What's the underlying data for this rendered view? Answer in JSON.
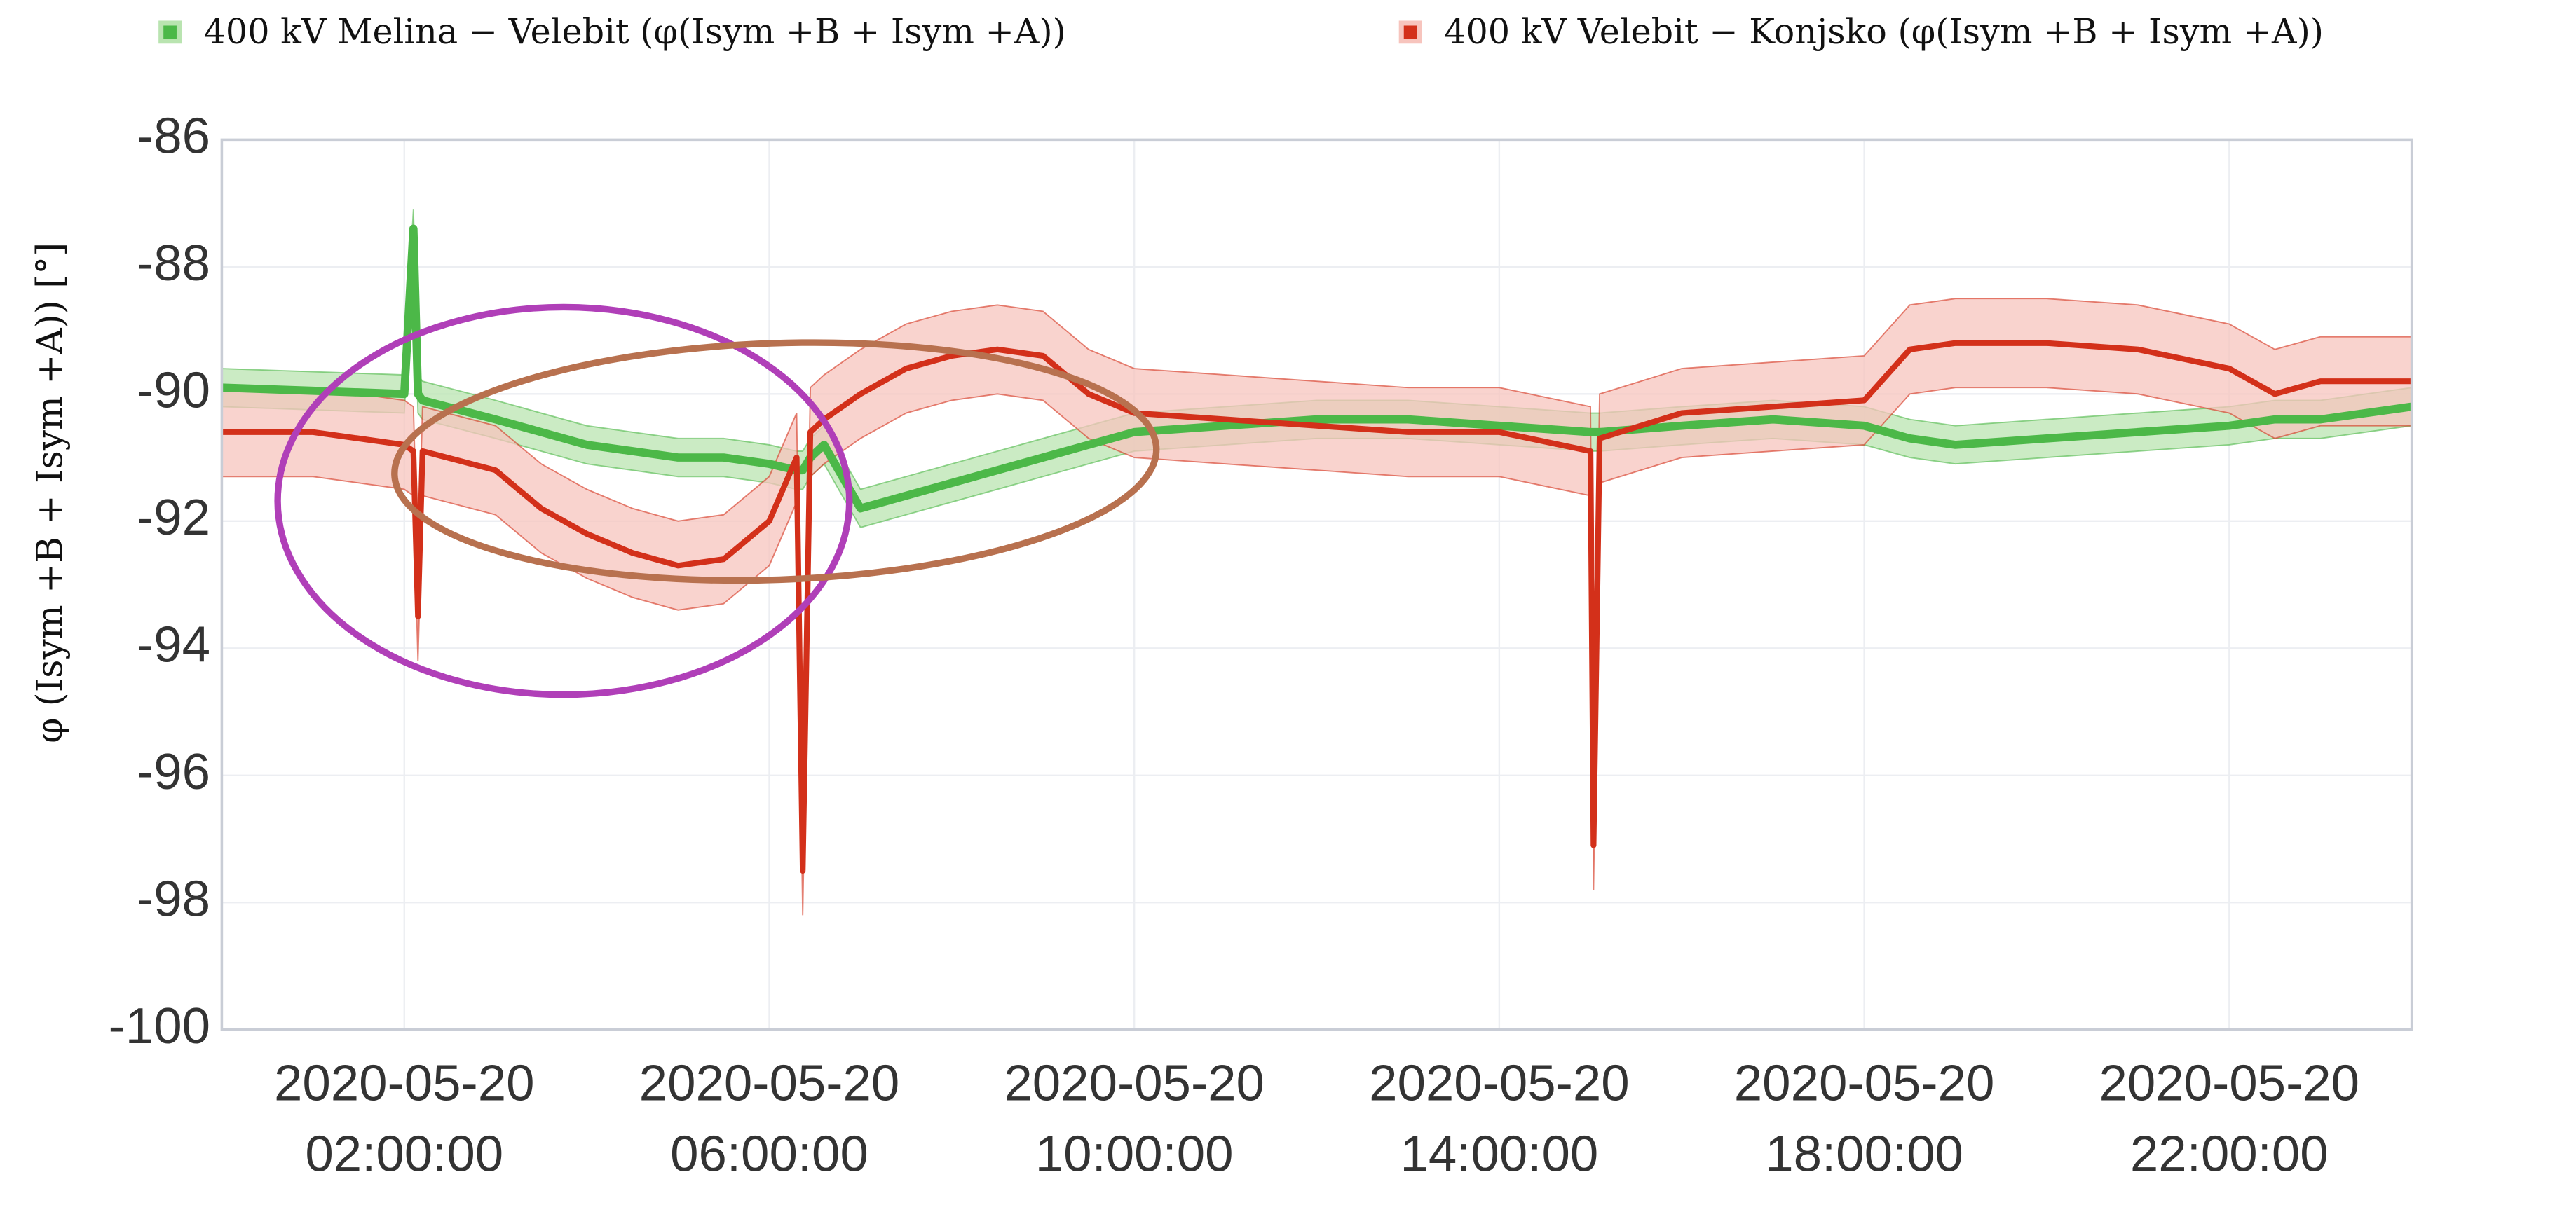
{
  "chart_data": {
    "type": "line",
    "ylabel": "φ (Isym +B + Isym +A)) [°]",
    "x": [
      "2020-05-20 00:00:00",
      "2020-05-20 01:00:00",
      "2020-05-20 02:00:00",
      "2020-05-20 02:06:00",
      "2020-05-20 02:09:00",
      "2020-05-20 02:12:00",
      "2020-05-20 03:00:00",
      "2020-05-20 03:30:00",
      "2020-05-20 04:00:00",
      "2020-05-20 04:30:00",
      "2020-05-20 05:00:00",
      "2020-05-20 05:30:00",
      "2020-05-20 06:00:00",
      "2020-05-20 06:18:00",
      "2020-05-20 06:22:00",
      "2020-05-20 06:27:00",
      "2020-05-20 06:36:00",
      "2020-05-20 07:00:00",
      "2020-05-20 07:30:00",
      "2020-05-20 08:00:00",
      "2020-05-20 08:30:00",
      "2020-05-20 09:00:00",
      "2020-05-20 09:30:00",
      "2020-05-20 10:00:00",
      "2020-05-20 11:00:00",
      "2020-05-20 12:00:00",
      "2020-05-20 13:00:00",
      "2020-05-20 14:00:00",
      "2020-05-20 15:00:00",
      "2020-05-20 15:02:00",
      "2020-05-20 15:06:00",
      "2020-05-20 16:00:00",
      "2020-05-20 17:00:00",
      "2020-05-20 18:00:00",
      "2020-05-20 18:30:00",
      "2020-05-20 19:00:00",
      "2020-05-20 20:00:00",
      "2020-05-20 21:00:00",
      "2020-05-20 22:00:00",
      "2020-05-20 22:30:00",
      "2020-05-20 23:00:00",
      "2020-05-21 00:00:00"
    ],
    "series": [
      {
        "name": "400 kV Melina − Velebit (φ(Isym +B + Isym +A))",
        "color": "#4cb848",
        "band_color": "#b9e4b0",
        "values": [
          -89.9,
          -89.95,
          -90.0,
          -87.4,
          -90.0,
          -90.1,
          -90.4,
          -90.6,
          -90.8,
          -90.9,
          -91.0,
          -91.0,
          -91.1,
          -91.2,
          -91.2,
          -91.0,
          -90.8,
          -91.8,
          -91.6,
          -91.4,
          -91.2,
          -91.0,
          -90.8,
          -90.6,
          -90.5,
          -90.4,
          -90.4,
          -90.5,
          -90.6,
          -90.6,
          -90.6,
          -90.5,
          -90.4,
          -90.5,
          -90.7,
          -90.8,
          -90.7,
          -90.6,
          -90.5,
          -90.4,
          -90.4,
          -90.2
        ],
        "lower": [
          -90.2,
          -90.25,
          -90.3,
          -87.7,
          -90.3,
          -90.4,
          -90.7,
          -90.9,
          -91.1,
          -91.2,
          -91.3,
          -91.3,
          -91.4,
          -91.5,
          -91.5,
          -91.3,
          -91.1,
          -92.1,
          -91.9,
          -91.7,
          -91.5,
          -91.3,
          -91.1,
          -90.9,
          -90.8,
          -90.7,
          -90.7,
          -90.8,
          -90.9,
          -90.9,
          -90.9,
          -90.8,
          -90.7,
          -90.8,
          -91.0,
          -91.1,
          -91.0,
          -90.9,
          -90.8,
          -90.7,
          -90.7,
          -90.5
        ],
        "upper": [
          -89.6,
          -89.65,
          -89.7,
          -87.1,
          -89.7,
          -89.8,
          -90.1,
          -90.3,
          -90.5,
          -90.6,
          -90.7,
          -90.7,
          -90.8,
          -90.9,
          -90.9,
          -90.7,
          -90.5,
          -91.5,
          -91.3,
          -91.1,
          -90.9,
          -90.7,
          -90.5,
          -90.3,
          -90.2,
          -90.1,
          -90.1,
          -90.2,
          -90.3,
          -90.3,
          -90.3,
          -90.2,
          -90.1,
          -90.2,
          -90.4,
          -90.5,
          -90.4,
          -90.3,
          -90.2,
          -90.1,
          -90.1,
          -89.9
        ]
      },
      {
        "name": "400 kV Velebit − Konjsko (φ(Isym +B + Isym +A))",
        "color": "#d3301a",
        "band_color": "#f7c4bd",
        "values": [
          -90.6,
          -90.6,
          -90.8,
          -90.9,
          -93.5,
          -90.9,
          -91.2,
          -91.8,
          -92.2,
          -92.5,
          -92.7,
          -92.6,
          -92.0,
          -91.0,
          -97.5,
          -90.6,
          -90.4,
          -90.0,
          -89.6,
          -89.4,
          -89.3,
          -89.4,
          -90.0,
          -90.3,
          -90.4,
          -90.5,
          -90.6,
          -90.6,
          -90.9,
          -97.1,
          -90.7,
          -90.3,
          -90.2,
          -90.1,
          -89.3,
          -89.2,
          -89.2,
          -89.3,
          -89.6,
          -90.0,
          -89.8,
          -89.8
        ],
        "lower": [
          -91.3,
          -91.3,
          -91.5,
          -91.6,
          -94.2,
          -91.6,
          -91.9,
          -92.5,
          -92.9,
          -93.2,
          -93.4,
          -93.3,
          -92.7,
          -91.7,
          -98.2,
          -91.3,
          -91.1,
          -90.7,
          -90.3,
          -90.1,
          -90.0,
          -90.1,
          -90.7,
          -91.0,
          -91.1,
          -91.2,
          -91.3,
          -91.3,
          -91.6,
          -97.8,
          -91.4,
          -91.0,
          -90.9,
          -90.8,
          -90.0,
          -89.9,
          -89.9,
          -90.0,
          -90.3,
          -90.7,
          -90.5,
          -90.5
        ],
        "upper": [
          -89.9,
          -89.9,
          -90.1,
          -90.2,
          -92.8,
          -90.2,
          -90.5,
          -91.1,
          -91.5,
          -91.8,
          -92.0,
          -91.9,
          -91.3,
          -90.3,
          -96.8,
          -89.9,
          -89.7,
          -89.3,
          -88.9,
          -88.7,
          -88.6,
          -88.7,
          -89.3,
          -89.6,
          -89.7,
          -89.8,
          -89.9,
          -89.9,
          -90.2,
          -96.4,
          -90.0,
          -89.6,
          -89.5,
          -89.4,
          -88.6,
          -88.5,
          -88.5,
          -88.6,
          -88.9,
          -89.3,
          -89.1,
          -89.1
        ]
      }
    ],
    "xlim": [
      "2020-05-20 00:00:00",
      "2020-05-21 00:00:00"
    ],
    "xticks": [
      "2020-05-20 02:00:00",
      "2020-05-20 06:00:00",
      "2020-05-20 10:00:00",
      "2020-05-20 14:00:00",
      "2020-05-20 18:00:00",
      "2020-05-20 22:00:00"
    ],
    "ylim": [
      -100,
      -86
    ],
    "yticks": [
      -100,
      -98,
      -96,
      -94,
      -92,
      -90,
      -88,
      -86
    ],
    "grid": true,
    "legend": "top"
  }
}
